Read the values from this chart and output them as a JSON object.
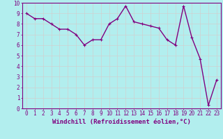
{
  "x": [
    0,
    1,
    2,
    3,
    4,
    5,
    6,
    7,
    8,
    9,
    10,
    11,
    12,
    13,
    14,
    15,
    16,
    17,
    18,
    19,
    20,
    21,
    22,
    23
  ],
  "y": [
    9.0,
    8.5,
    8.5,
    8.0,
    7.5,
    7.5,
    7.0,
    6.0,
    6.5,
    6.5,
    8.0,
    8.5,
    9.7,
    8.2,
    8.0,
    7.8,
    7.6,
    6.5,
    6.0,
    9.7,
    6.7,
    4.7,
    0.3,
    2.7
  ],
  "line_color": "#800080",
  "marker": "+",
  "marker_size": 3,
  "bg_color": "#b2eeee",
  "grid_color": "#d0d0d0",
  "xlabel": "Windchill (Refroidissement éolien,°C)",
  "xlim": [
    -0.5,
    23.5
  ],
  "ylim": [
    0,
    10
  ],
  "xticks": [
    0,
    1,
    2,
    3,
    4,
    5,
    6,
    7,
    8,
    9,
    10,
    11,
    12,
    13,
    14,
    15,
    16,
    17,
    18,
    19,
    20,
    21,
    22,
    23
  ],
  "yticks": [
    0,
    1,
    2,
    3,
    4,
    5,
    6,
    7,
    8,
    9,
    10
  ],
  "label_color": "#800080",
  "tick_color": "#800080",
  "spine_color": "#800080",
  "xlabel_fontsize": 6.5,
  "tick_fontsize": 5.5,
  "line_width": 1.0
}
